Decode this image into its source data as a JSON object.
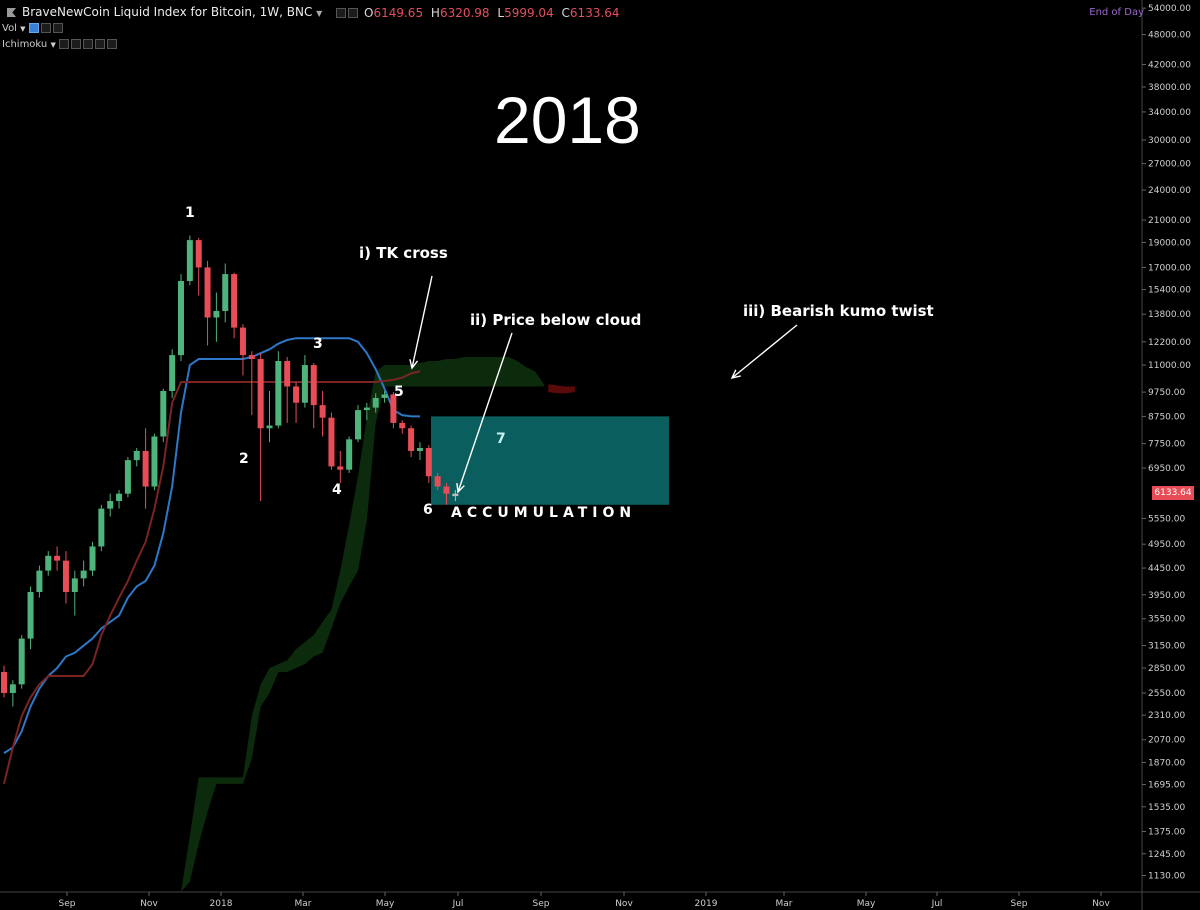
{
  "header": {
    "title": "BraveNewCoin Liquid Index for Bitcoin, 1W, BNC",
    "ohlc": [
      {
        "k": "O",
        "v": "6149.65"
      },
      {
        "k": "H",
        "v": "6320.98"
      },
      {
        "k": "L",
        "v": "5999.04"
      },
      {
        "k": "C",
        "v": "6133.64"
      }
    ],
    "end_of_day": "End of Day"
  },
  "indicators": [
    {
      "label": "Vol"
    },
    {
      "label": "Ichimoku"
    }
  ],
  "colors": {
    "background": "#000000",
    "candle_up": "#4fb37c",
    "candle_down": "#e84d57",
    "kijun": "#2d78c8",
    "tenkan": "#7a2424",
    "cloud_bull": "#0c2a0c",
    "cloud_bear": "#5a0a0a",
    "box": "#0b6666",
    "price_tag": "#e84d57"
  },
  "chart_data": {
    "type": "candlestick",
    "title": "BraveNewCoin Liquid Index for Bitcoin, 1W, BNC",
    "yscale": "log",
    "ylim": [
      1050,
      56000
    ],
    "y_ticks": [
      "1130.00",
      "1245.00",
      "1375.00",
      "1535.00",
      "1695.00",
      "1870.00",
      "2070.00",
      "2310.00",
      "2550.00",
      "2850.00",
      "3150.00",
      "3550.00",
      "3950.00",
      "4450.00",
      "4950.00",
      "5550.00",
      "6133.64",
      "6950.00",
      "7750.00",
      "8750.00",
      "9750.00",
      "11000.00",
      "12200.00",
      "13800.00",
      "15400.00",
      "17000.00",
      "19000.00",
      "21000.00",
      "24000.00",
      "27000.00",
      "30000.00",
      "34000.00",
      "38000.00",
      "42000.00",
      "48000.00",
      "54000.00"
    ],
    "x_ticks": [
      "Sep",
      "Nov",
      "2018",
      "Mar",
      "May",
      "Jul",
      "Sep",
      "Nov",
      "2019",
      "Mar",
      "May",
      "Jul",
      "Sep",
      "Nov"
    ],
    "last_price": "6133.64",
    "candles": [
      [
        2800,
        2880,
        2500,
        2550
      ],
      [
        2550,
        2700,
        2400,
        2650
      ],
      [
        2650,
        3300,
        2600,
        3250
      ],
      [
        3250,
        4100,
        3100,
        4000
      ],
      [
        4000,
        4500,
        3900,
        4400
      ],
      [
        4400,
        4800,
        4300,
        4700
      ],
      [
        4700,
        4900,
        4400,
        4600
      ],
      [
        4600,
        4800,
        3800,
        4000
      ],
      [
        4000,
        4400,
        3600,
        4250
      ],
      [
        4250,
        4600,
        4100,
        4400
      ],
      [
        4400,
        5000,
        4300,
        4900
      ],
      [
        4900,
        5900,
        4800,
        5800
      ],
      [
        5800,
        6200,
        5600,
        6000
      ],
      [
        6000,
        6300,
        5800,
        6200
      ],
      [
        6200,
        7300,
        6100,
        7200
      ],
      [
        7200,
        7600,
        7000,
        7500
      ],
      [
        7500,
        8300,
        5800,
        6400
      ],
      [
        6400,
        8100,
        6300,
        8000
      ],
      [
        8000,
        9900,
        7800,
        9800
      ],
      [
        9800,
        11800,
        9500,
        11500
      ],
      [
        11500,
        16500,
        11200,
        16000
      ],
      [
        16000,
        19600,
        15700,
        19200
      ],
      [
        19200,
        19400,
        15000,
        17000
      ],
      [
        17000,
        17500,
        12000,
        13600
      ],
      [
        13600,
        15200,
        12200,
        14000
      ],
      [
        14000,
        17300,
        13300,
        16500
      ],
      [
        16500,
        16600,
        12400,
        13000
      ],
      [
        13000,
        13200,
        10500,
        11500
      ],
      [
        11500,
        11700,
        8800,
        11300
      ],
      [
        11300,
        11600,
        6000,
        8300
      ],
      [
        8300,
        9800,
        7800,
        8400
      ],
      [
        8400,
        11700,
        8300,
        11200
      ],
      [
        11200,
        11400,
        8500,
        10000
      ],
      [
        10000,
        10200,
        8500,
        9300
      ],
      [
        9300,
        11500,
        9100,
        11000
      ],
      [
        11000,
        11100,
        8300,
        9200
      ],
      [
        9200,
        9800,
        8000,
        8700
      ],
      [
        8700,
        8900,
        6900,
        7000
      ],
      [
        7000,
        7500,
        6500,
        6900
      ],
      [
        6900,
        8000,
        6800,
        7900
      ],
      [
        7900,
        9200,
        7800,
        9000
      ],
      [
        9000,
        9300,
        8600,
        9100
      ],
      [
        9100,
        9700,
        8900,
        9500
      ],
      [
        9500,
        9800,
        9300,
        9650
      ],
      [
        9650,
        9750,
        8300,
        8500
      ],
      [
        8500,
        8600,
        8100,
        8300
      ],
      [
        8300,
        8400,
        7300,
        7500
      ],
      [
        7500,
        7800,
        7200,
        7600
      ],
      [
        7600,
        7700,
        6500,
        6700
      ],
      [
        6700,
        6800,
        6300,
        6400
      ],
      [
        6400,
        6500,
        5900,
        6200
      ],
      [
        6200,
        6300,
        5999,
        6133.64
      ]
    ],
    "series": [
      {
        "name": "",
        "values_note": "",
        "values": [
          1950,
          2000,
          2150,
          2400,
          2600,
          2750,
          2850,
          3000,
          3050,
          3150,
          3250,
          3400,
          3500,
          3600,
          3900,
          4100,
          4200,
          4500,
          5200,
          6400,
          8900,
          11000,
          11300,
          11300,
          11300,
          11300,
          11300,
          11300,
          11400,
          11600,
          11800,
          12100,
          12300,
          12400,
          12400,
          12400,
          12400,
          12400,
          12400,
          12400,
          12200,
          11600,
          10800,
          9900,
          9000,
          8800,
          8750,
          8750
        ]
      },
      {
        "name": "",
        "values": [
          1700,
          2000,
          2300,
          2500,
          2650,
          2750,
          2750,
          2750,
          2750,
          2750,
          2900,
          3300,
          3600,
          3900,
          4200,
          4600,
          5000,
          5800,
          7000,
          9300,
          10200,
          10200,
          10200,
          10200,
          10200,
          10200,
          10200,
          10200,
          10200,
          10200,
          10200,
          10200,
          10200,
          10200,
          10200,
          10200,
          10200,
          10200,
          10200,
          10200,
          10200,
          10200,
          10200,
          10250,
          10300,
          10400,
          10600,
          10700
        ]
      }
    ],
    "cloud": {
      "upper": [
        1050,
        1350,
        1750,
        1750,
        1750,
        1750,
        1750,
        1750,
        2300,
        2650,
        2850,
        2900,
        2950,
        3100,
        3200,
        3300,
        3500,
        3700,
        4400,
        5400,
        6700,
        8700,
        10700,
        11000,
        11000,
        11000,
        11000,
        11100,
        11200,
        11200,
        11300,
        11300,
        11400,
        11400,
        11400,
        11400,
        11400,
        11400,
        11200,
        10900,
        10700,
        10100
      ],
      "lower": [
        1050,
        1100,
        1300,
        1500,
        1700,
        1700,
        1700,
        1700,
        1900,
        2400,
        2550,
        2800,
        2800,
        2850,
        2900,
        3000,
        3050,
        3400,
        3800,
        4100,
        4400,
        5500,
        8500,
        10000,
        10000,
        10000,
        10000,
        10000,
        10000,
        10000,
        10000,
        10000,
        10000,
        10000,
        10000,
        10000,
        10000,
        10000,
        10000,
        10000,
        10000,
        10000
      ],
      "bear_twist": [
        [
          9750,
          10100
        ],
        [
          9700,
          10050
        ],
        [
          9700,
          10000
        ],
        [
          9750,
          10000
        ]
      ]
    },
    "annotations": [
      "2018",
      "1",
      "2",
      "3",
      "4",
      "5",
      "6",
      "7",
      "i) TK cross",
      "ii) Price below cloud",
      "iii) Bearish kumo twist",
      "ACCUMULATION"
    ]
  }
}
